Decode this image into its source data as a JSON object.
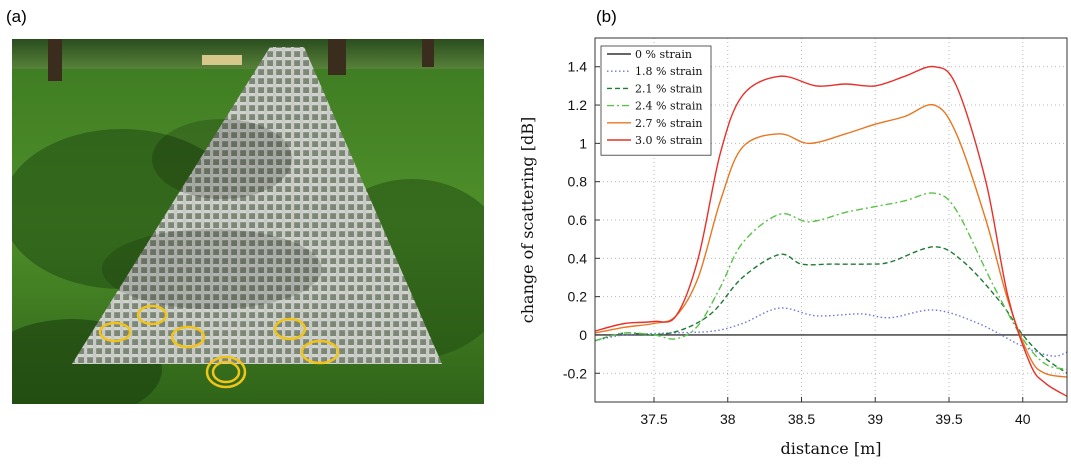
{
  "figure": {
    "panel_a_label": "(a)",
    "panel_b_label": "(b)",
    "photo": {
      "icon": "photo-sensor-textile-on-grass"
    }
  },
  "chart_data": {
    "type": "line",
    "xlabel": "distance [m]",
    "ylabel": "change of scattering [dB]",
    "xlim": [
      37.1,
      40.3
    ],
    "ylim": [
      -0.35,
      1.55
    ],
    "xticks": [
      37.5,
      38,
      38.5,
      39,
      39.5,
      40
    ],
    "xtick_labels": [
      "37.5",
      "38",
      "38.5",
      "39",
      "39.5",
      "40"
    ],
    "yticks": [
      -0.2,
      0,
      0.2,
      0.4,
      0.6,
      0.8,
      1,
      1.2,
      1.4
    ],
    "ytick_labels": [
      "-0.2",
      "0",
      "0.2",
      "0.4",
      "0.6",
      "0.8",
      "1",
      "1.2",
      "1.4"
    ],
    "grid": true,
    "legend_position": "top-left",
    "series": [
      {
        "name": "0 % strain",
        "color": "#333333",
        "dash": "",
        "x": [
          37.1,
          40.3
        ],
        "y": [
          0,
          0
        ]
      },
      {
        "name": "1.8 % strain",
        "color": "#6b78d8",
        "dash": "1.5,2.5",
        "x": [
          37.1,
          37.3,
          37.6,
          37.9,
          38.1,
          38.35,
          38.6,
          38.9,
          39.1,
          39.4,
          39.7,
          40.0,
          40.2,
          40.3
        ],
        "y": [
          -0.03,
          0.0,
          0.01,
          0.02,
          0.06,
          0.14,
          0.1,
          0.11,
          0.09,
          0.13,
          0.06,
          -0.06,
          -0.11,
          -0.09
        ]
      },
      {
        "name": "2.1 % strain",
        "color": "#1e7a35",
        "dash": "5,3",
        "x": [
          37.1,
          37.3,
          37.5,
          37.7,
          37.9,
          38.1,
          38.35,
          38.5,
          38.7,
          38.95,
          39.1,
          39.4,
          39.6,
          39.85,
          40.0,
          40.15,
          40.3
        ],
        "y": [
          -0.03,
          0.01,
          0.0,
          0.03,
          0.12,
          0.3,
          0.42,
          0.37,
          0.37,
          0.37,
          0.38,
          0.46,
          0.38,
          0.17,
          0.0,
          -0.12,
          -0.2
        ]
      },
      {
        "name": "2.4 % strain",
        "color": "#5cc24a",
        "dash": "7,3,2,3",
        "x": [
          37.1,
          37.3,
          37.5,
          37.65,
          37.8,
          37.95,
          38.1,
          38.35,
          38.55,
          38.8,
          39.0,
          39.2,
          39.4,
          39.55,
          39.8,
          40.0,
          40.15,
          40.3
        ],
        "y": [
          -0.03,
          0.01,
          0.0,
          -0.02,
          0.05,
          0.25,
          0.48,
          0.63,
          0.59,
          0.64,
          0.67,
          0.7,
          0.74,
          0.65,
          0.26,
          -0.02,
          -0.15,
          -0.18
        ]
      },
      {
        "name": "2.7 % strain",
        "color": "#e87722",
        "dash": "",
        "x": [
          37.1,
          37.3,
          37.5,
          37.65,
          37.8,
          37.95,
          38.1,
          38.35,
          38.55,
          38.8,
          39.0,
          39.2,
          39.4,
          39.55,
          39.75,
          39.9,
          40.05,
          40.15,
          40.3
        ],
        "y": [
          0.01,
          0.04,
          0.06,
          0.1,
          0.3,
          0.7,
          0.98,
          1.05,
          1.0,
          1.05,
          1.1,
          1.14,
          1.2,
          1.05,
          0.6,
          0.18,
          -0.12,
          -0.2,
          -0.22
        ]
      },
      {
        "name": "3.0 % strain",
        "color": "#e8302a",
        "dash": "",
        "x": [
          37.1,
          37.3,
          37.5,
          37.65,
          37.8,
          37.95,
          38.1,
          38.35,
          38.6,
          38.8,
          39.0,
          39.2,
          39.4,
          39.55,
          39.75,
          39.9,
          40.05,
          40.15,
          40.3
        ],
        "y": [
          0.02,
          0.06,
          0.07,
          0.1,
          0.4,
          0.95,
          1.25,
          1.35,
          1.3,
          1.31,
          1.3,
          1.35,
          1.4,
          1.3,
          0.8,
          0.2,
          -0.15,
          -0.25,
          -0.32
        ]
      }
    ]
  }
}
